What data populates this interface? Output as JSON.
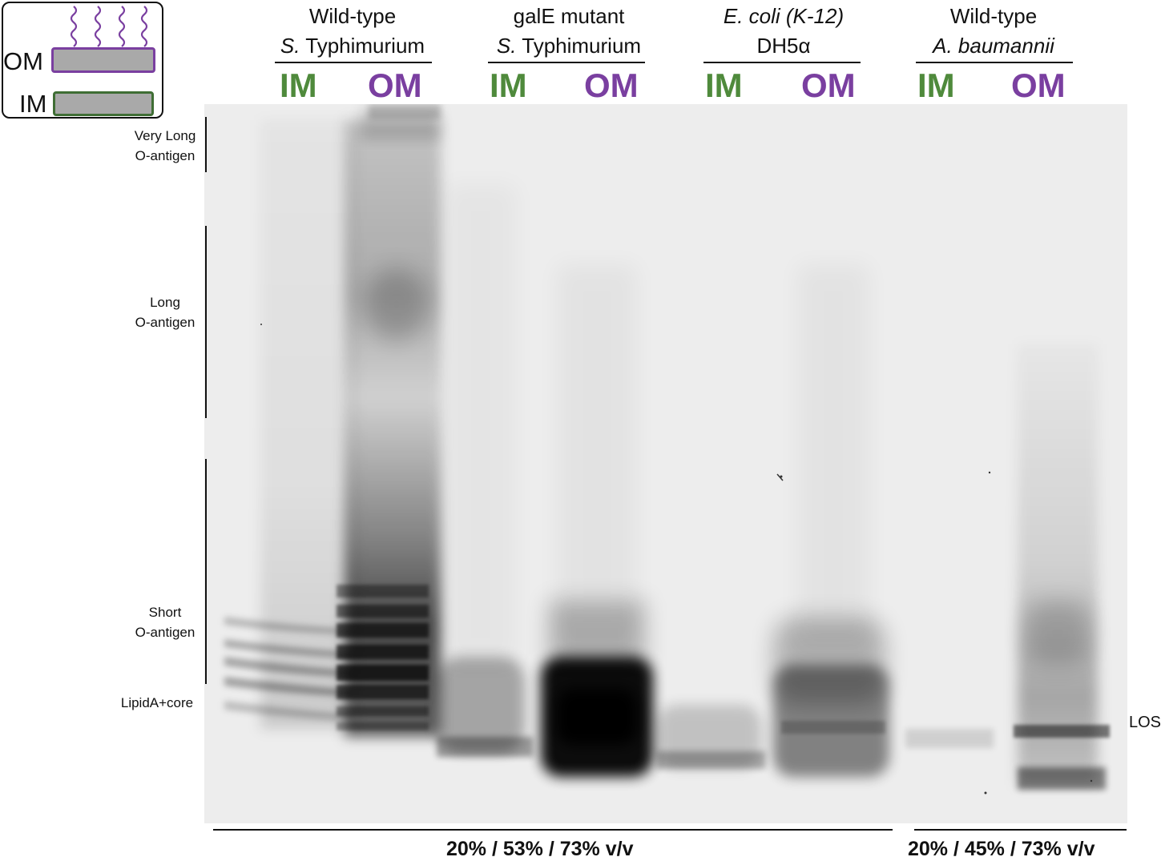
{
  "schematic": {
    "om_label": "OM",
    "im_label": "IM",
    "om_color": "#7a3fa0",
    "im_color": "#3f6e34"
  },
  "samples": [
    {
      "line1": "Wild-type",
      "line2_italic": "S.",
      "line2_rest": " Typhimurium",
      "lanes": [
        "IM",
        "OM"
      ]
    },
    {
      "line1": "galE mutant",
      "line2_italic": "S.",
      "line2_rest": " Typhimurium",
      "lanes": [
        "IM",
        "OM"
      ]
    },
    {
      "line1": "E. coli (K-12)",
      "line2_italic": "",
      "line2_rest": "DH5α",
      "lanes": [
        "IM",
        "OM"
      ]
    },
    {
      "line1": "Wild-type",
      "line2_italic": "A. baumannii",
      "line2_rest": "",
      "lanes": [
        "IM",
        "OM"
      ]
    }
  ],
  "lane_colors": {
    "IM": "#4f8a3c",
    "OM": "#7a3fa0"
  },
  "side_labels": {
    "very_long": [
      "Very Long",
      "O-antigen"
    ],
    "long": [
      "Long",
      "O-antigen"
    ],
    "short": [
      "Short",
      "O-antigen"
    ],
    "lipid": "LipidA+core",
    "los": "LOS"
  },
  "concentrations": {
    "left": "20% / 53% / 73% v/v",
    "right": "20% / 45% / 73% v/v"
  }
}
